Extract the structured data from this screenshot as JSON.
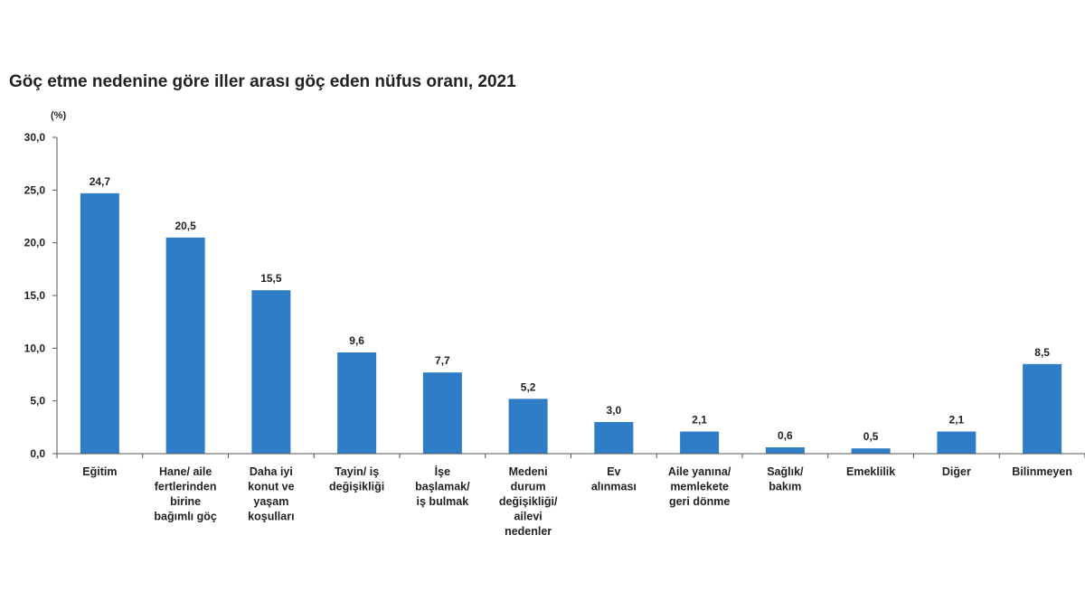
{
  "chart_data": {
    "type": "bar",
    "title": "Göç etme nedenine göre iller arası göç eden nüfus oranı, 2021",
    "ylabel": "(%)",
    "xlabel": "",
    "ylim": [
      0,
      30
    ],
    "yticks": [
      "0,0",
      "5,0",
      "10,0",
      "15,0",
      "20,0",
      "25,0",
      "30,0"
    ],
    "grid": false,
    "bar_color": "#2f7dc6",
    "categories": [
      [
        "Eğitim"
      ],
      [
        "Hane/ aile",
        "fertlerinden",
        "birine",
        "bağımlı göç"
      ],
      [
        "Daha iyi",
        "konut ve",
        "yaşam",
        "koşulları"
      ],
      [
        "Tayin/ iş",
        "değişikliği"
      ],
      [
        "İşe",
        "başlamak/",
        "iş bulmak"
      ],
      [
        "Medeni",
        "durum",
        "değişikliği/",
        "ailevi",
        "nedenler"
      ],
      [
        "Ev",
        "alınması"
      ],
      [
        "Aile yanına/",
        "memlekete",
        "geri dönme"
      ],
      [
        "Sağlık/",
        "bakım"
      ],
      [
        "Emeklilik"
      ],
      [
        "Diğer"
      ],
      [
        "Bilinmeyen"
      ]
    ],
    "values": [
      24.7,
      20.5,
      15.5,
      9.6,
      7.7,
      5.2,
      3.0,
      2.1,
      0.6,
      0.5,
      2.1,
      8.5
    ],
    "value_labels": [
      "24,7",
      "20,5",
      "15,5",
      "9,6",
      "7,7",
      "5,2",
      "3,0",
      "2,1",
      "0,6",
      "0,5",
      "2,1",
      "8,5"
    ]
  }
}
